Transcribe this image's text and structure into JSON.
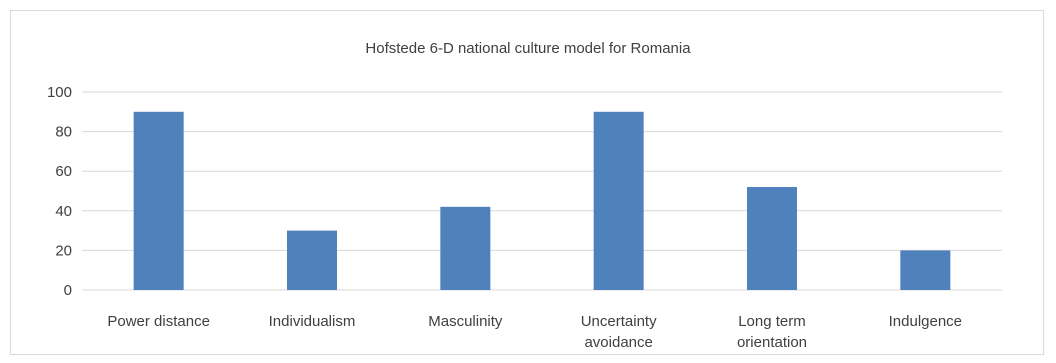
{
  "chart_data": {
    "type": "bar",
    "title": "Hofstede 6-D national culture model for Romania",
    "categories": [
      [
        "Power distance"
      ],
      [
        "Individualism"
      ],
      [
        "Masculinity"
      ],
      [
        "Uncertainty",
        "avoidance"
      ],
      [
        "Long term",
        "orientation"
      ],
      [
        "Indulgence"
      ]
    ],
    "values": [
      90,
      30,
      42,
      90,
      52,
      20
    ],
    "ylim": [
      0,
      100
    ],
    "yticks": [
      0,
      20,
      40,
      60,
      80,
      100
    ],
    "grid": true,
    "bar_color": "#4f81bd",
    "grid_color": "#d9d9d9"
  }
}
